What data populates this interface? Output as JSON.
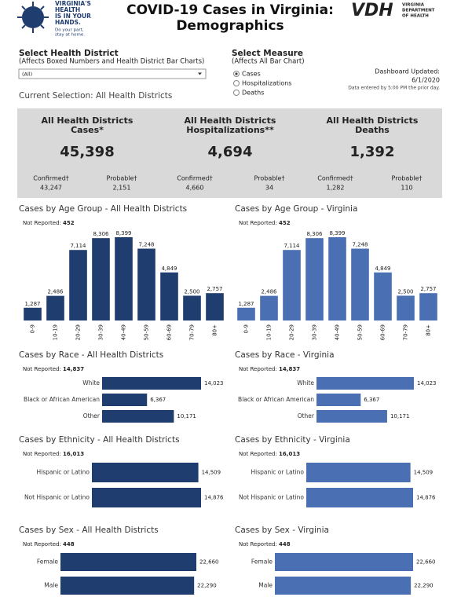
{
  "header": {
    "logo_lines": [
      "VIRGINIA'S",
      "HEALTH",
      "IS IN YOUR",
      "HANDS."
    ],
    "logo_tagline": [
      "Do your part,",
      "stay at home."
    ],
    "title": [
      "COVID-19 Cases in Virginia:",
      "Demographics"
    ],
    "agency_short": "VDH",
    "agency_name": [
      "VIRGINIA",
      "DEPARTMENT",
      "OF HEALTH"
    ]
  },
  "controls": {
    "district_label": "Select Health District",
    "district_note": "(Affects Boxed Numbers and Health District Bar Charts)",
    "district_value": "(All)",
    "measure_label": "Select Measure",
    "measure_note": "(Affects All Bar Chart)",
    "measure_options": [
      "Cases",
      "Hospitalizations",
      "Deaths"
    ],
    "updated_label": "Dashboard Updated:",
    "updated_date": "6/1/2020",
    "updated_note": "Data entered by 5:00 PM the prior day.",
    "current_selection": "Current Selection: All Health Districts"
  },
  "summary": [
    {
      "title": [
        "All Health Districts",
        "Cases*"
      ],
      "total": "45,398",
      "confirmed_label": "Confirmed†",
      "confirmed": "43,247",
      "probable_label": "Probable†",
      "probable": "2,151"
    },
    {
      "title": [
        "All Health Districts",
        "Hospitalizations**"
      ],
      "total": "4,694",
      "confirmed_label": "Confirmed†",
      "confirmed": "4,660",
      "probable_label": "Probable†",
      "probable": "34"
    },
    {
      "title": [
        "All Health Districts",
        "Deaths"
      ],
      "total": "1,392",
      "confirmed_label": "Confirmed†",
      "confirmed": "1,282",
      "probable_label": "Probable†",
      "probable": "110"
    }
  ],
  "chart_data": [
    {
      "type": "bar",
      "orientation": "vertical",
      "title": "Cases by Age Group - All Health Districts",
      "not_reported_label": "Not Reported:",
      "not_reported": "452",
      "color": "#1f3d6e",
      "categories": [
        "0-9",
        "10-19",
        "20-29",
        "30-39",
        "40-49",
        "50-59",
        "60-69",
        "70-79",
        "80+"
      ],
      "values": [
        1287,
        2486,
        7114,
        8306,
        8399,
        7248,
        4849,
        2500,
        2757
      ],
      "value_labels": [
        "1,287",
        "2,486",
        "7,114",
        "8,306",
        "8,399",
        "7,248",
        "4,849",
        "2,500",
        "2,757"
      ]
    },
    {
      "type": "bar",
      "orientation": "vertical",
      "title": "Cases by Age Group - Virginia",
      "not_reported_label": "Not Reported:",
      "not_reported": "452",
      "color": "#4a70b3",
      "categories": [
        "0-9",
        "10-19",
        "20-29",
        "30-39",
        "40-49",
        "50-59",
        "60-69",
        "70-79",
        "80+"
      ],
      "values": [
        1287,
        2486,
        7114,
        8306,
        8399,
        7248,
        4849,
        2500,
        2757
      ],
      "value_labels": [
        "1,287",
        "2,486",
        "7,114",
        "8,306",
        "8,399",
        "7,248",
        "4,849",
        "2,500",
        "2,757"
      ]
    },
    {
      "type": "bar",
      "orientation": "horizontal",
      "title": "Cases by Race - All Health Districts",
      "not_reported_label": "Not Reported:",
      "not_reported": "14,837",
      "color": "#1f3d6e",
      "categories": [
        "White",
        "Black or African American",
        "Other"
      ],
      "values": [
        14023,
        6367,
        10171
      ],
      "value_labels": [
        "14,023",
        "6,367",
        "10,171"
      ]
    },
    {
      "type": "bar",
      "orientation": "horizontal",
      "title": "Cases by Race - Virginia",
      "not_reported_label": "Not Reported:",
      "not_reported": "14,837",
      "color": "#4a70b3",
      "categories": [
        "White",
        "Black or African American",
        "Other"
      ],
      "values": [
        14023,
        6367,
        10171
      ],
      "value_labels": [
        "14,023",
        "6,367",
        "10,171"
      ]
    },
    {
      "type": "bar",
      "orientation": "horizontal",
      "title": "Cases by Ethnicity - All Health Districts",
      "not_reported_label": "Not Reported:",
      "not_reported": "16,013",
      "color": "#1f3d6e",
      "categories": [
        "Hispanic or Latino",
        "Not Hispanic or Latino"
      ],
      "values": [
        14509,
        14876
      ],
      "value_labels": [
        "14,509",
        "14,876"
      ]
    },
    {
      "type": "bar",
      "orientation": "horizontal",
      "title": "Cases by Ethnicity - Virginia",
      "not_reported_label": "Not Reported:",
      "not_reported": "16,013",
      "color": "#4a70b3",
      "categories": [
        "Hispanic or Latino",
        "Not Hispanic or Latino"
      ],
      "values": [
        14509,
        14876
      ],
      "value_labels": [
        "14,509",
        "14,876"
      ]
    },
    {
      "type": "bar",
      "orientation": "horizontal",
      "title": "Cases by Sex - All Health Districts",
      "not_reported_label": "Not Reported:",
      "not_reported": "448",
      "color": "#1f3d6e",
      "categories": [
        "Female",
        "Male"
      ],
      "values": [
        22660,
        22290
      ],
      "value_labels": [
        "22,660",
        "22,290"
      ]
    },
    {
      "type": "bar",
      "orientation": "horizontal",
      "title": "Cases by Sex - Virginia",
      "not_reported_label": "Not Reported:",
      "not_reported": "448",
      "color": "#4a70b3",
      "categories": [
        "Female",
        "Male"
      ],
      "values": [
        22660,
        22290
      ],
      "value_labels": [
        "22,660",
        "22,290"
      ]
    }
  ]
}
